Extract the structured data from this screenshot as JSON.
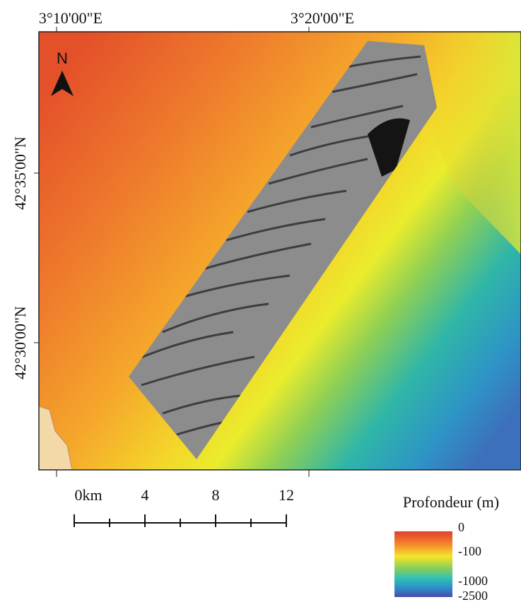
{
  "map": {
    "graticule": {
      "top": [
        "3°10'00\"E",
        "3°20'00\"E"
      ],
      "left": [
        "42°35'00\"N",
        "42°30'00\"N"
      ]
    },
    "north_arrow": "N",
    "scale_bar": {
      "labels": [
        "0km",
        "4",
        "8",
        "12"
      ]
    },
    "legend": {
      "title": "Profondeur (m)",
      "labels": [
        "0",
        "-100",
        "-1000",
        "-2500"
      ]
    }
  }
}
